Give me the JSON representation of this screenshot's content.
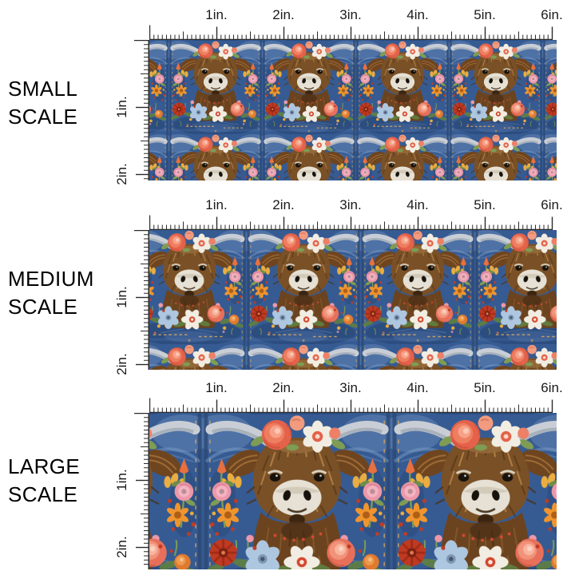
{
  "page": {
    "background": "#FFFFFF"
  },
  "sections": [
    {
      "id": "small",
      "label_lines": [
        "SMALL",
        "SCALE"
      ]
    },
    {
      "id": "medium",
      "label_lines": [
        "MEDIUM",
        "SCALE"
      ]
    },
    {
      "id": "large",
      "label_lines": [
        "LARGE",
        "SCALE"
      ]
    }
  ],
  "ruler": {
    "unit": "in.",
    "horizontal_labels": [
      "1in.",
      "2in.",
      "3in.",
      "4in.",
      "5in.",
      "6in."
    ],
    "vertical_labels": [
      "1in.",
      "2in."
    ],
    "ticks_per_inch": 16,
    "tick_color": "#2B2B2B",
    "label_color": "#1A1A1A"
  },
  "swatch": {
    "pattern_description": "Embroidery-style highland cow with coral flower crown, wildflowers and greenery on blue denim",
    "palette": {
      "denim": "#365B93",
      "denim_light": "#6C8FBC",
      "denim_dark": "#22406E",
      "cow_brown": "#7E5528",
      "cow_brown_light": "#BE8C4E",
      "cow_brown_dark": "#4A2E14",
      "muzzle_cream": "#E6E1D4",
      "coral": "#E8705A",
      "peach": "#F4A68C",
      "flower_white": "#F2EDE2",
      "orange": "#F0952E",
      "poppy_red": "#BE3A22",
      "pink": "#EC98AA",
      "light_blue": "#AEC7E1",
      "yellow": "#EBAD3F",
      "leaf_green": "#7E9C54",
      "horn_gray": "#C9CED6",
      "stitch_gold": "#D9A95C"
    }
  }
}
